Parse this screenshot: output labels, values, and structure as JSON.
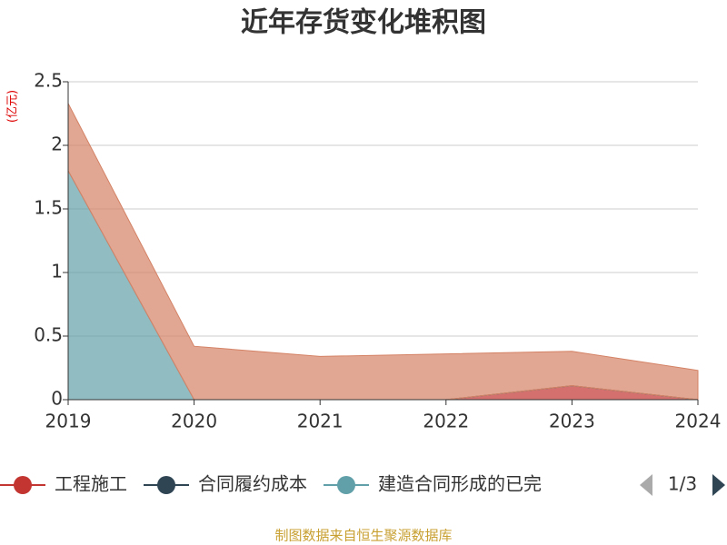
{
  "chart_data": {
    "type": "area",
    "stacked": true,
    "title": "近年存货变化堆积图",
    "y_label": "(亿元)",
    "source": "制图数据来自恒生聚源数据库",
    "legend_page": "1/3",
    "categories": [
      "2019",
      "2020",
      "2021",
      "2022",
      "2023",
      "2024"
    ],
    "series": [
      {
        "name": "工程施工",
        "color": "#c23531",
        "values": [
          0,
          0,
          0,
          0,
          0.11,
          0
        ]
      },
      {
        "name": "合同履约成本",
        "color": "#2f4554",
        "values": [
          0,
          0,
          0,
          0,
          0,
          0
        ]
      },
      {
        "name": "建造合同形成的已完",
        "color": "#61a0a8",
        "values": [
          1.8,
          0,
          0,
          0,
          0,
          0
        ]
      },
      {
        "color": "#d48265",
        "values": [
          0.53,
          0.42,
          0.34,
          0.36,
          0.27,
          0.23
        ]
      }
    ],
    "ylim": [
      0,
      2.5
    ],
    "yticks": [
      0,
      0.5,
      1,
      1.5,
      2,
      2.5
    ],
    "grid": true
  }
}
